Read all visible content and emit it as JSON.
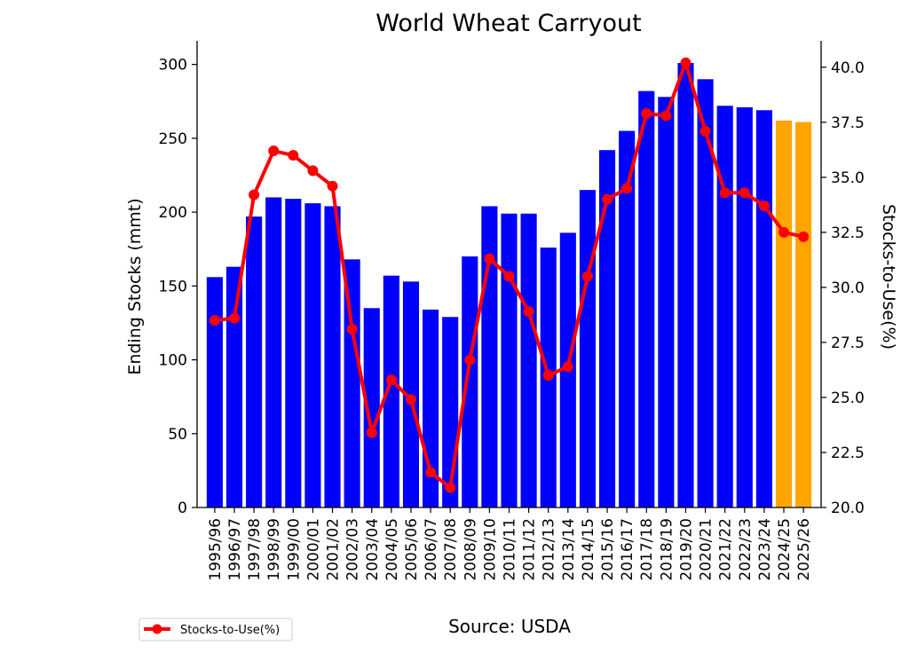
{
  "chart_data": {
    "type": "bar",
    "title": "World Wheat Carryout",
    "xlabel": "",
    "ylabel": "Ending Stocks (mmt)",
    "y2label": "Stocks-to-Use(%)",
    "source": "Source: USDA",
    "categories": [
      "1995/96",
      "1996/97",
      "1997/98",
      "1998/99",
      "1999/00",
      "2000/01",
      "2001/02",
      "2002/03",
      "2003/04",
      "2004/05",
      "2005/06",
      "2006/07",
      "2007/08",
      "2008/09",
      "2009/10",
      "2010/11",
      "2011/12",
      "2012/13",
      "2013/14",
      "2014/15",
      "2015/16",
      "2016/17",
      "2017/18",
      "2018/19",
      "2019/20",
      "2020/21",
      "2021/22",
      "2022/23",
      "2023/24",
      "2024/25",
      "2025/26"
    ],
    "ylim": [
      0,
      316
    ],
    "y2lim": [
      20,
      41.2
    ],
    "yticks": [
      "0",
      "50",
      "100",
      "150",
      "200",
      "250",
      "300"
    ],
    "y2ticks": [
      "20.0",
      "22.5",
      "25.0",
      "27.5",
      "30.0",
      "32.5",
      "35.0",
      "37.5",
      "40.0"
    ],
    "series": [
      {
        "type": "bar",
        "axis": "left",
        "values": [
          156,
          163,
          197,
          210,
          209,
          206,
          204,
          168,
          135,
          157,
          153,
          134,
          129,
          170,
          204,
          199,
          199,
          176,
          186,
          215,
          242,
          255,
          282,
          278,
          301,
          290,
          272,
          271,
          269,
          262,
          261
        ],
        "colors": [
          "#0000ff",
          "#0000ff",
          "#0000ff",
          "#0000ff",
          "#0000ff",
          "#0000ff",
          "#0000ff",
          "#0000ff",
          "#0000ff",
          "#0000ff",
          "#0000ff",
          "#0000ff",
          "#0000ff",
          "#0000ff",
          "#0000ff",
          "#0000ff",
          "#0000ff",
          "#0000ff",
          "#0000ff",
          "#0000ff",
          "#0000ff",
          "#0000ff",
          "#0000ff",
          "#0000ff",
          "#0000ff",
          "#0000ff",
          "#0000ff",
          "#0000ff",
          "#0000ff",
          "#ffa500",
          "#ffa500"
        ]
      },
      {
        "type": "line",
        "axis": "right",
        "name": "Stocks-to-Use(%)",
        "color": "#ff0000",
        "values": [
          28.5,
          28.6,
          34.2,
          36.2,
          36.0,
          35.3,
          34.6,
          28.1,
          23.4,
          25.8,
          24.9,
          21.6,
          20.9,
          26.7,
          31.3,
          30.5,
          28.9,
          26.0,
          26.4,
          30.5,
          34.0,
          34.5,
          37.9,
          37.8,
          40.2,
          37.1,
          34.3,
          34.3,
          33.7,
          32.5,
          32.3
        ]
      }
    ],
    "legend": {
      "placement": "lower-left",
      "entries": [
        "Stocks-to-Use(%)"
      ]
    }
  }
}
